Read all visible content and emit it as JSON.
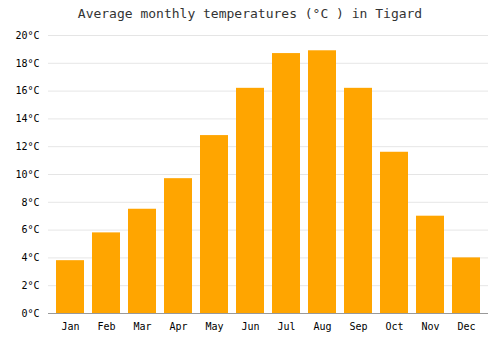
{
  "chart_data": {
    "type": "bar",
    "title": "Average monthly temperatures (°C ) in Tigard",
    "categories": [
      "Jan",
      "Feb",
      "Mar",
      "Apr",
      "May",
      "Jun",
      "Jul",
      "Aug",
      "Sep",
      "Oct",
      "Nov",
      "Dec"
    ],
    "values": [
      3.8,
      5.8,
      7.5,
      9.7,
      12.8,
      16.2,
      18.7,
      18.9,
      16.2,
      11.6,
      7.0,
      4.0
    ],
    "color": "#FFA500",
    "ylim": [
      0,
      20
    ],
    "yticks": [
      {
        "value": 0,
        "label": "0°C"
      },
      {
        "value": 2,
        "label": "2°C"
      },
      {
        "value": 4,
        "label": "4°C"
      },
      {
        "value": 6,
        "label": "6°C"
      },
      {
        "value": 8,
        "label": "8°C"
      },
      {
        "value": 10,
        "label": "10°C"
      },
      {
        "value": 12,
        "label": "12°C"
      },
      {
        "value": 14,
        "label": "14°C"
      },
      {
        "value": 16,
        "label": "16°C"
      },
      {
        "value": 18,
        "label": "18°C"
      },
      {
        "value": 20,
        "label": "20°C"
      }
    ],
    "grid": true
  }
}
